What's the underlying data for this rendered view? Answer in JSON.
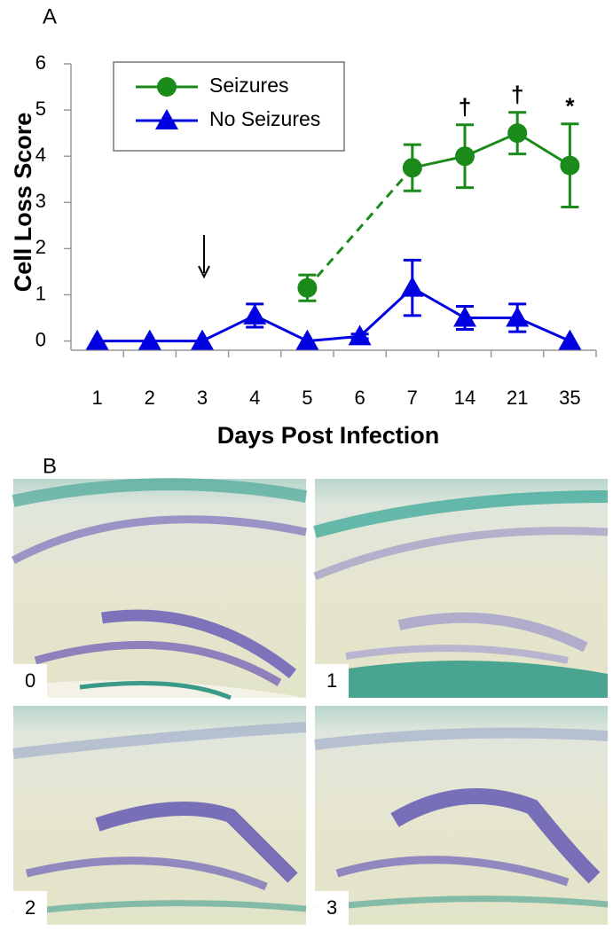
{
  "chart_data": {
    "type": "line",
    "panel_label": "A",
    "y_label": "Cell Loss Score",
    "x_label": "Days Post Infection",
    "categories": [
      "1",
      "2",
      "3",
      "4",
      "5",
      "6",
      "7",
      "14",
      "21",
      "35"
    ],
    "ylim": [
      -0.2,
      6
    ],
    "yticks": [
      0,
      1,
      2,
      3,
      4,
      5,
      6
    ],
    "legend": "upper left",
    "series": [
      {
        "name": "Seizures",
        "color": "#1a8a1a",
        "marker": "circle",
        "values": [
          null,
          null,
          null,
          null,
          1.15,
          null,
          3.75,
          4.0,
          4.5,
          3.8
        ],
        "errors": [
          null,
          null,
          null,
          null,
          0.28,
          null,
          0.5,
          0.68,
          0.45,
          0.9
        ]
      },
      {
        "name": "No Seizures",
        "color": "#0000e0",
        "marker": "triangle",
        "values": [
          0,
          0,
          0,
          0.55,
          0,
          0.1,
          1.15,
          0.5,
          0.5,
          0
        ],
        "errors": [
          null,
          null,
          null,
          0.25,
          null,
          0.05,
          0.6,
          0.25,
          0.3,
          null
        ]
      }
    ],
    "annotations": [
      {
        "text": "†",
        "category": "14"
      },
      {
        "text": "†",
        "category": "21"
      },
      {
        "text": "*",
        "category": "35"
      }
    ]
  },
  "panel_b": {
    "label": "B",
    "images": [
      {
        "label": "0"
      },
      {
        "label": "1"
      },
      {
        "label": "2"
      },
      {
        "label": "3"
      }
    ]
  }
}
